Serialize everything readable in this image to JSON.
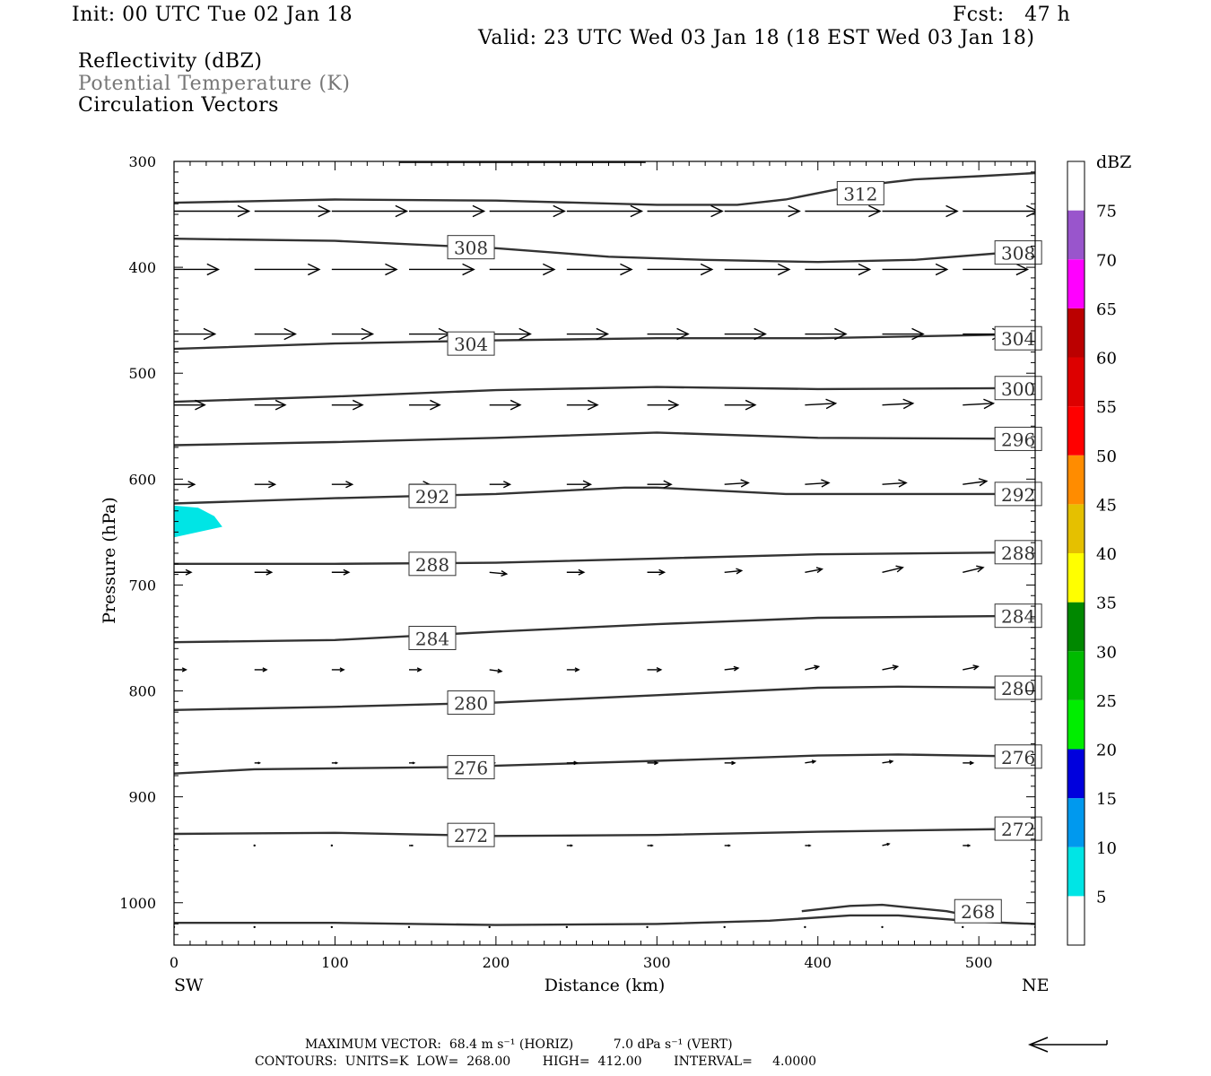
{
  "header": {
    "init": "Init: 00 UTC Tue 02 Jan 18",
    "fcst": "Fcst:   47 h",
    "valid": "Valid: 23 UTC Wed 03 Jan 18 (18 EST Wed 03 Jan 18)",
    "field1": "Reflectivity (dBZ)",
    "field2": "Potential Temperature (K)",
    "field3": "Circulation Vectors"
  },
  "footer": {
    "line1": "MAXIMUM VECTOR:  68.4 m s⁻¹ (HORIZ)          7.0 dPa s⁻¹ (VERT)",
    "line2": "CONTOURS:  UNITS=K  LOW=  268.00        HIGH=  412.00        INTERVAL=     4.0000"
  },
  "chart_data": {
    "type": "cross-section",
    "xlabel": "Distance (km)",
    "ylabel": "Pressure (hPa)",
    "xlim": [
      0,
      535
    ],
    "ylim": [
      1040,
      300
    ],
    "x_ticks": [
      0,
      100,
      200,
      300,
      400,
      500
    ],
    "y_ticks": [
      300,
      400,
      500,
      600,
      700,
      800,
      900,
      1000
    ],
    "x_end_labels": {
      "left": "SW",
      "right": "NE"
    },
    "colorbar": {
      "title": "dBZ",
      "labels": [
        "5",
        "10",
        "15",
        "20",
        "25",
        "30",
        "35",
        "40",
        "45",
        "50",
        "55",
        "60",
        "65",
        "70",
        "75"
      ],
      "colors": [
        "#ffffff",
        "#00e5e5",
        "#0099ee",
        "#0000dd",
        "#00ee00",
        "#00bb00",
        "#008800",
        "#ffff00",
        "#e5c000",
        "#ff8c00",
        "#ff0000",
        "#dd0000",
        "#bb0000",
        "#ff00ff",
        "#9955cc",
        "#ffffff"
      ]
    },
    "reflectivity_area": {
      "dbz_class": "5-10",
      "color": "#00e5e5",
      "polygon": [
        [
          0,
          625
        ],
        [
          15,
          627
        ],
        [
          25,
          635
        ],
        [
          30,
          645
        ],
        [
          15,
          650
        ],
        [
          0,
          655
        ]
      ]
    },
    "theta_contours": [
      {
        "value": 312,
        "points": [
          [
            0,
            339
          ],
          [
            100,
            336
          ],
          [
            200,
            337
          ],
          [
            300,
            341
          ],
          [
            350,
            341
          ],
          [
            380,
            336
          ],
          [
            420,
            324
          ],
          [
            460,
            317
          ],
          [
            500,
            314
          ],
          [
            535,
            311
          ]
        ],
        "labels": [
          [
            412,
            330
          ]
        ]
      },
      {
        "value": 308,
        "points": [
          [
            0,
            373
          ],
          [
            100,
            375
          ],
          [
            200,
            382
          ],
          [
            270,
            390
          ],
          [
            330,
            393
          ],
          [
            400,
            395
          ],
          [
            460,
            393
          ],
          [
            535,
            384
          ]
        ],
        "labels": [
          [
            170,
            381
          ],
          [
            510,
            386
          ]
        ]
      },
      {
        "value": 304,
        "points": [
          [
            0,
            477
          ],
          [
            100,
            472
          ],
          [
            200,
            469
          ],
          [
            300,
            467
          ],
          [
            400,
            467
          ],
          [
            535,
            463
          ]
        ],
        "labels": [
          [
            170,
            472
          ],
          [
            510,
            467
          ]
        ]
      },
      {
        "value": 300,
        "points": [
          [
            0,
            527
          ],
          [
            100,
            522
          ],
          [
            200,
            516
          ],
          [
            300,
            513
          ],
          [
            400,
            515
          ],
          [
            535,
            514
          ]
        ],
        "labels": [
          [
            510,
            514
          ]
        ]
      },
      {
        "value": 296,
        "points": [
          [
            0,
            568
          ],
          [
            100,
            565
          ],
          [
            200,
            561
          ],
          [
            300,
            556
          ],
          [
            400,
            561
          ],
          [
            535,
            562
          ]
        ],
        "labels": [
          [
            510,
            562
          ]
        ]
      },
      {
        "value": 292,
        "points": [
          [
            0,
            623
          ],
          [
            100,
            618
          ],
          [
            200,
            614
          ],
          [
            280,
            608
          ],
          [
            300,
            608
          ],
          [
            380,
            614
          ],
          [
            535,
            614
          ]
        ],
        "labels": [
          [
            146,
            616
          ],
          [
            510,
            614
          ]
        ]
      },
      {
        "value": 288,
        "points": [
          [
            0,
            680
          ],
          [
            100,
            680
          ],
          [
            200,
            679
          ],
          [
            300,
            675
          ],
          [
            400,
            671
          ],
          [
            535,
            669
          ]
        ],
        "labels": [
          [
            146,
            680
          ],
          [
            510,
            669
          ]
        ]
      },
      {
        "value": 284,
        "points": [
          [
            0,
            754
          ],
          [
            100,
            752
          ],
          [
            200,
            744
          ],
          [
            300,
            737
          ],
          [
            400,
            731
          ],
          [
            535,
            729
          ]
        ],
        "labels": [
          [
            146,
            750
          ],
          [
            510,
            729
          ]
        ]
      },
      {
        "value": 280,
        "points": [
          [
            0,
            818
          ],
          [
            100,
            815
          ],
          [
            200,
            811
          ],
          [
            300,
            804
          ],
          [
            400,
            797
          ],
          [
            450,
            796
          ],
          [
            535,
            797
          ]
        ],
        "labels": [
          [
            170,
            811
          ],
          [
            510,
            797
          ]
        ]
      },
      {
        "value": 276,
        "points": [
          [
            0,
            878
          ],
          [
            50,
            874
          ],
          [
            170,
            872
          ],
          [
            300,
            866
          ],
          [
            400,
            861
          ],
          [
            450,
            860
          ],
          [
            535,
            862
          ]
        ],
        "labels": [
          [
            170,
            872
          ],
          [
            510,
            862
          ]
        ]
      },
      {
        "value": 272,
        "points": [
          [
            0,
            935
          ],
          [
            100,
            934
          ],
          [
            200,
            937
          ],
          [
            300,
            936
          ],
          [
            400,
            933
          ],
          [
            535,
            930
          ]
        ],
        "labels": [
          [
            170,
            936
          ],
          [
            510,
            930
          ]
        ]
      },
      {
        "value": 268,
        "points": [
          [
            0,
            1019
          ],
          [
            100,
            1019
          ],
          [
            200,
            1021
          ],
          [
            300,
            1020
          ],
          [
            370,
            1017
          ],
          [
            420,
            1012
          ],
          [
            450,
            1012
          ],
          [
            500,
            1018
          ],
          [
            535,
            1020
          ]
        ],
        "labels": [
          [
            485,
            1008
          ]
        ]
      },
      {
        "value": 268,
        "points": [
          [
            390,
            1008
          ],
          [
            420,
            1003
          ],
          [
            440,
            1002
          ],
          [
            480,
            1008
          ],
          [
            510,
            1017
          ]
        ],
        "labels": []
      }
    ],
    "vectors": [
      {
        "p": 347,
        "u": [
          44,
          44,
          44,
          44,
          44,
          44,
          44,
          44,
          44,
          44,
          44,
          44,
          44
        ],
        "w": [
          0,
          0,
          0,
          0,
          0,
          0,
          0,
          0,
          0,
          0,
          0,
          0,
          2
        ]
      },
      {
        "p": 402,
        "u": [
          26,
          38,
          38,
          38,
          38,
          38,
          38,
          38,
          38,
          38,
          38,
          38,
          38
        ],
        "w": [
          0,
          0,
          0,
          0,
          0,
          0,
          0,
          0,
          0,
          0,
          0,
          0,
          1
        ]
      },
      {
        "p": 463,
        "u": [
          24,
          24,
          24,
          24,
          24,
          24,
          24,
          24,
          24,
          24,
          24,
          24,
          24
        ],
        "w": [
          0,
          0,
          0,
          0,
          0,
          0,
          0,
          0,
          0,
          0,
          0,
          0,
          0
        ]
      },
      {
        "p": 530,
        "u": [
          18,
          18,
          18,
          18,
          18,
          18,
          18,
          18,
          18,
          18,
          18,
          18,
          18
        ],
        "w": [
          0,
          0,
          0,
          0,
          0,
          0,
          0,
          0,
          1,
          1,
          1,
          1,
          1
        ]
      },
      {
        "p": 605,
        "u": [
          12,
          12,
          12,
          12,
          12,
          14,
          14,
          14,
          14,
          14,
          14,
          14,
          14
        ],
        "w": [
          0,
          0,
          0,
          0,
          0,
          0,
          0,
          1,
          1,
          1,
          2,
          2,
          2
        ]
      },
      {
        "p": 688,
        "u": [
          10,
          10,
          10,
          10,
          10,
          10,
          10,
          10,
          10,
          12,
          12,
          12,
          12
        ],
        "w": [
          0,
          0,
          0,
          0,
          -1,
          0,
          0,
          1,
          2,
          3,
          3,
          3,
          3
        ]
      },
      {
        "p": 780,
        "u": [
          7,
          7,
          7,
          7,
          7,
          7,
          8,
          8,
          8,
          9,
          9,
          9,
          9
        ],
        "w": [
          0,
          0,
          0,
          0,
          -1,
          0,
          0,
          1,
          2,
          2,
          2,
          3,
          3
        ]
      },
      {
        "p": 868,
        "u": [
          2,
          3,
          3,
          3,
          3,
          6,
          6,
          6,
          6,
          6,
          6,
          6,
          6
        ],
        "w": [
          0,
          0,
          0,
          0,
          0,
          0,
          0,
          0,
          1,
          1,
          0,
          0,
          0
        ]
      },
      {
        "p": 946,
        "u": [
          1,
          1,
          1,
          2,
          2,
          3,
          3,
          3,
          3,
          4,
          4,
          5,
          5
        ],
        "w": [
          0,
          0,
          0,
          0,
          0,
          0,
          0,
          0,
          0,
          1,
          0,
          0,
          0
        ]
      },
      {
        "p": 1023,
        "u": [
          1,
          1,
          1,
          1,
          1,
          1,
          1,
          1,
          1,
          1,
          1,
          1,
          1
        ],
        "w": [
          0,
          0,
          0,
          0,
          0,
          0,
          0,
          0,
          0,
          0,
          0,
          0,
          0
        ]
      }
    ],
    "vector_x": [
      0,
      50,
      98,
      146,
      196,
      244,
      294,
      342,
      392,
      440,
      490,
      535,
      585
    ]
  }
}
